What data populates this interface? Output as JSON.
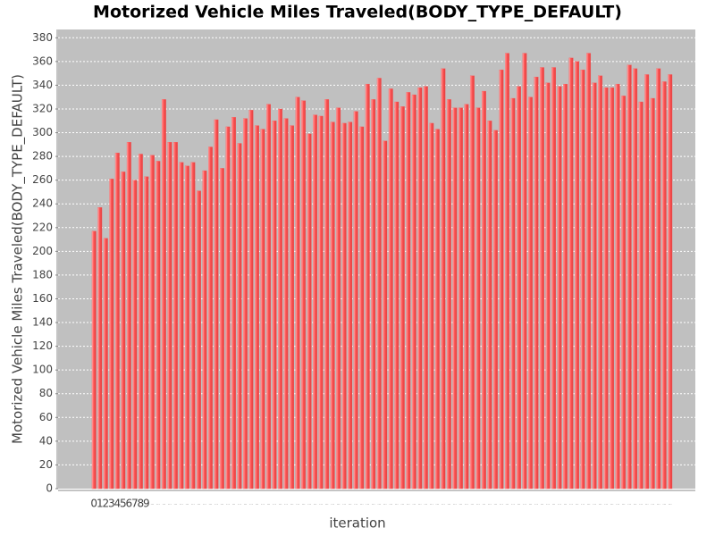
{
  "chart_data": {
    "type": "bar",
    "title": "Motorized Vehicle Miles Traveled(BODY_TYPE_DEFAULT)",
    "x_label": "iteration",
    "y_label": "Motorized Vehicle Miles Traveled(BODY_TYPE_DEFAULT)",
    "categories": [
      "0",
      "1",
      "2",
      "3",
      "4",
      "5",
      "6",
      "7",
      "8",
      "9",
      "...",
      "...",
      "...",
      "...",
      "...",
      "...",
      "...",
      "...",
      "...",
      "...",
      "...",
      "...",
      "...",
      "...",
      "...",
      "...",
      "...",
      "...",
      "...",
      "...",
      "...",
      "...",
      "...",
      "...",
      "...",
      "...",
      "...",
      "...",
      "...",
      "...",
      "...",
      "...",
      "...",
      "...",
      "...",
      "...",
      "...",
      "...",
      "...",
      "...",
      "...",
      "...",
      "...",
      "...",
      "...",
      "...",
      "...",
      "...",
      "...",
      "...",
      "...",
      "...",
      "...",
      "...",
      "...",
      "...",
      "...",
      "...",
      "...",
      "...",
      "...",
      "...",
      "...",
      "...",
      "...",
      "...",
      "...",
      "...",
      "...",
      "...",
      "...",
      "...",
      "...",
      "...",
      "...",
      "...",
      "...",
      "...",
      "...",
      "...",
      "...",
      "...",
      "...",
      "...",
      "...",
      "...",
      "...",
      "...",
      "...",
      "..."
    ],
    "values": [
      217,
      237,
      211,
      261,
      283,
      267,
      292,
      260,
      282,
      263,
      281,
      276,
      328,
      292,
      292,
      275,
      272,
      275,
      251,
      268,
      288,
      311,
      270,
      305,
      313,
      291,
      312,
      319,
      306,
      303,
      324,
      310,
      320,
      312,
      306,
      330,
      327,
      299,
      315,
      314,
      328,
      309,
      321,
      308,
      309,
      318,
      305,
      341,
      328,
      346,
      293,
      337,
      326,
      322,
      334,
      332,
      338,
      339,
      308,
      303,
      354,
      328,
      321,
      321,
      324,
      348,
      321,
      335,
      310,
      302,
      353,
      367,
      329,
      339,
      367,
      330,
      347,
      355,
      342,
      355,
      339,
      341,
      363,
      360,
      353,
      367,
      342,
      348,
      338,
      338,
      341,
      331,
      357,
      354,
      326,
      349,
      329,
      354,
      343,
      349
    ],
    "color": "#ff5555",
    "ylim": [
      0,
      387
    ],
    "yticks": [
      0,
      20,
      40,
      60,
      80,
      100,
      120,
      140,
      160,
      180,
      200,
      220,
      240,
      260,
      280,
      300,
      320,
      340,
      360,
      380
    ],
    "grid": true
  }
}
